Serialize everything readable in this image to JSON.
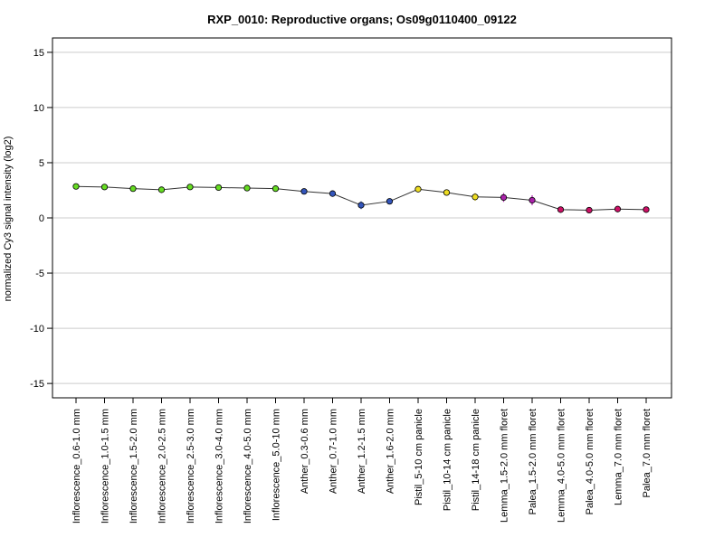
{
  "chart_data": {
    "type": "line",
    "title": "RXP_0010: Reproductive organs; Os09g0110400_09122",
    "xlabel": "",
    "ylabel": "normalized Cy3 signal intensity (log2)",
    "ylim": [
      -16.3,
      16.3
    ],
    "yticks": [
      -15,
      -10,
      -5,
      0,
      5,
      10,
      15
    ],
    "grid": true,
    "categories": [
      "Inflorescence_0.6-1.0 mm",
      "Inflorescence_1.0-1.5 mm",
      "Inflorescence_1.5-2.0 mm",
      "Inflorescence_2.0-2.5 mm",
      "Inflorescence_2.5-3.0 mm",
      "Inflorescence_3.0-4.0 mm",
      "Inflorescence_4.0-5.0 mm",
      "Inflorescence_5.0-10 mm",
      "Anther_0.3-0.6 mm",
      "Anther_0.7-1.0 mm",
      "Anther_1.2-1.5 mm",
      "Anther_1.6-2.0 mm",
      "Pistil_5-10 cm panicle",
      "Pistil_10-14 cm panicle",
      "Pistil_14-18 cm panicle",
      "Lemma_1.5-2.0 mm floret",
      "Palea_1.5-2.0 mm floret",
      "Lemma_4.0-5.0 mm floret",
      "Palea_4.0-5.0 mm floret",
      "Lemma_7.0 mm floret",
      "Palea_7.0 mm floret"
    ],
    "series": [
      {
        "values": [
          2.85,
          2.8,
          2.65,
          2.55,
          2.8,
          2.75,
          2.7,
          2.65,
          2.4,
          2.2,
          1.15,
          1.5,
          2.6,
          2.3,
          1.9,
          1.85,
          1.6,
          0.75,
          0.7,
          0.8,
          0.75
        ],
        "errors": [
          0.1,
          0.1,
          0.15,
          0.1,
          0.1,
          0.1,
          0.1,
          0.1,
          0.15,
          0.15,
          0.35,
          0.15,
          0.25,
          0.2,
          0.35,
          0.4,
          0.45,
          0.1,
          0.1,
          0.1,
          0.1
        ]
      }
    ],
    "point_colors": [
      "#66dd22",
      "#66dd22",
      "#66dd22",
      "#66dd22",
      "#66dd22",
      "#66dd22",
      "#66dd22",
      "#66dd22",
      "#3355bb",
      "#3355bb",
      "#3355bb",
      "#3355bb",
      "#eedd22",
      "#eedd22",
      "#eedd22",
      "#aa22aa",
      "#aa22aa",
      "#cc1166",
      "#cc1166",
      "#cc1166",
      "#cc1166"
    ],
    "line_color": "#333333",
    "grid_color": "#cccccc"
  }
}
